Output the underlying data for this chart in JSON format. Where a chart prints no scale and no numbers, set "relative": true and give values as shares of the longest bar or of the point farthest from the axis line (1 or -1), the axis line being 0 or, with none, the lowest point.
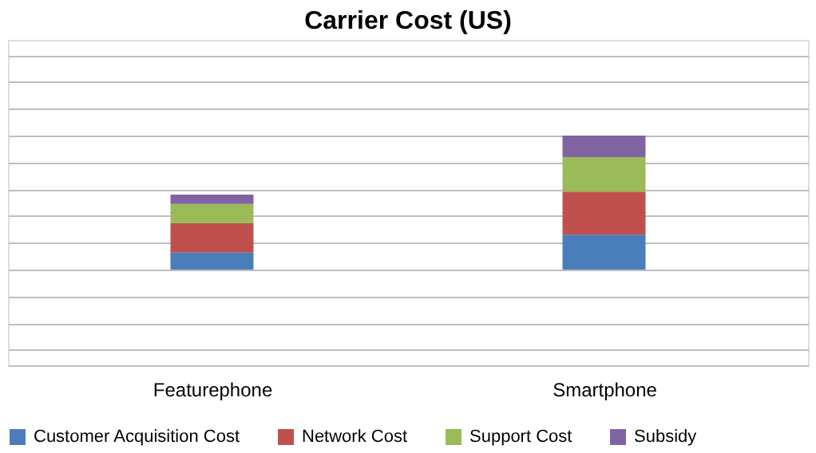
{
  "chart_data": {
    "type": "bar",
    "title": "Carrier Cost (US)",
    "categories": [
      "Featurephone",
      "Smartphone"
    ],
    "stacked": true,
    "relative": true,
    "grid": "y",
    "legend": "bottom",
    "series": [
      {
        "name": "Customer Acquisition Cost",
        "color": "#4a7ebb",
        "values": [
          0.127,
          0.261
        ]
      },
      {
        "name": "Network Cost",
        "color": "#c0504d",
        "values": [
          0.218,
          0.321
        ]
      },
      {
        "name": "Support Cost",
        "color": "#9bbb59",
        "values": [
          0.145,
          0.257
        ]
      },
      {
        "name": "Subsidy",
        "color": "#8064a2",
        "values": [
          0.07,
          0.161
        ]
      }
    ]
  }
}
